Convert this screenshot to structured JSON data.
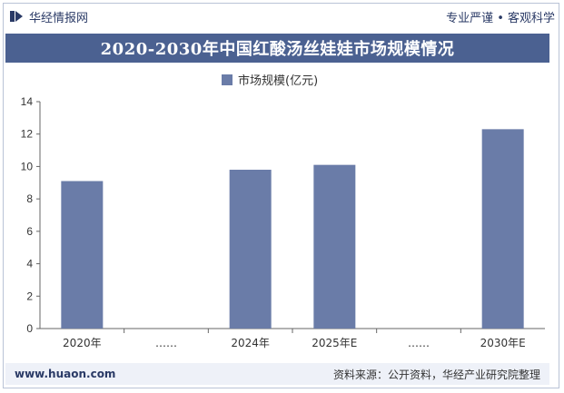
{
  "header": {
    "brand_name": "华经情报网",
    "tagline": "专业严谨 • 客观科学"
  },
  "title": "2020-2030年中国红酸汤丝娃娃市场规模情况",
  "legend": {
    "label": "市场规模(亿元)"
  },
  "colors": {
    "bar": "#6a7ca8",
    "title_bg": "#4b6191",
    "brand": "#2a3a66"
  },
  "chart_data": {
    "type": "bar",
    "title": "2020-2030年中国红酸汤丝娃娃市场规模情况",
    "categories": [
      "2020年",
      "……",
      "2024年",
      "2025年E",
      "……",
      "2030年E"
    ],
    "series": [
      {
        "name": "市场规模(亿元)",
        "values": [
          9.1,
          null,
          9.8,
          10.1,
          null,
          12.3
        ]
      }
    ],
    "ylim": [
      0,
      14
    ],
    "yticks": [
      0,
      2,
      4,
      6,
      8,
      10,
      12,
      14
    ],
    "grid": false,
    "legend_position": "top-center"
  },
  "footer": {
    "website": "www.huaon.com",
    "source": "资料来源：公开资料，华经产业研究院整理"
  }
}
